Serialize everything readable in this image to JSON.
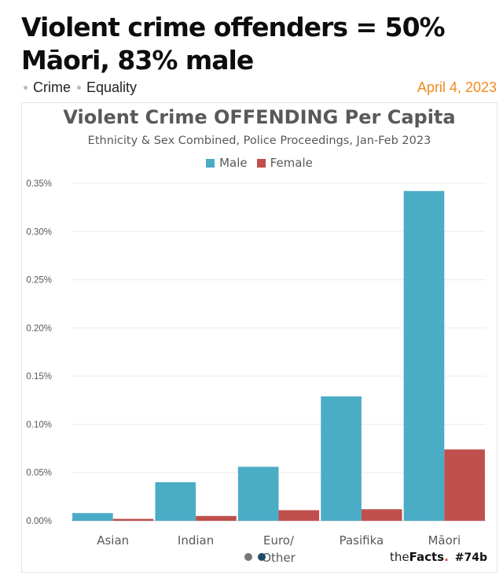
{
  "headline": {
    "line1": "Violent crime offenders = 50%",
    "line2": "Māori, 83% male"
  },
  "tags": [
    {
      "label": "Crime"
    },
    {
      "label": "Equality"
    }
  ],
  "date": "April 4, 2023",
  "brand": {
    "the": "the",
    "facts": "Facts",
    "dot": ".",
    "tag": "#74b"
  },
  "colors": {
    "male": "#4bacc6",
    "female": "#c0504d",
    "date": "#f08a1c"
  },
  "pager": {
    "count": 2,
    "active_index": 1
  },
  "chart_data": {
    "type": "bar",
    "title": "Violent Crime OFFENDING Per Capita",
    "subtitle": "Ethnicity & Sex Combined, Police Proceedings, Jan-Feb 2023",
    "categories": [
      "Asian",
      "Indian",
      "Euro/ Other",
      "Pasifika",
      "Māori"
    ],
    "series": [
      {
        "name": "Male",
        "color": "#4bacc6",
        "values": [
          0.008,
          0.04,
          0.056,
          0.129,
          0.342
        ]
      },
      {
        "name": "Female",
        "color": "#c0504d",
        "values": [
          0.002,
          0.005,
          0.011,
          0.012,
          0.074
        ]
      }
    ],
    "ylim": [
      0,
      0.35
    ],
    "yticks": [
      0,
      0.05,
      0.1,
      0.15,
      0.2,
      0.25,
      0.3,
      0.35
    ],
    "ytick_labels": [
      "0.00%",
      "0.05%",
      "0.10%",
      "0.15%",
      "0.20%",
      "0.25%",
      "0.30%",
      "0.35%"
    ],
    "grid": true,
    "legend": "top-center"
  }
}
